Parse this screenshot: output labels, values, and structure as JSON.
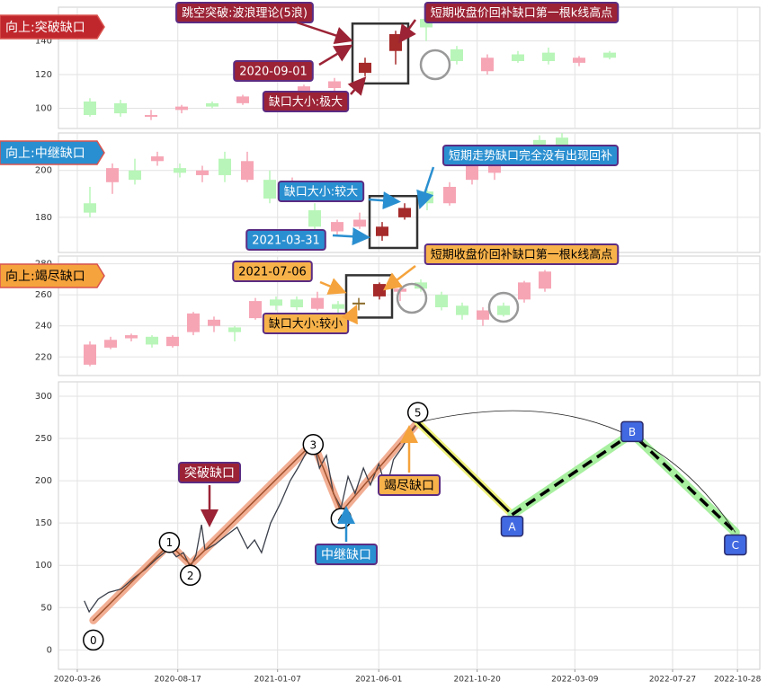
{
  "chart_data": [
    {
      "type": "candlestick",
      "tag": "向上:突破缺口",
      "tag_color": "#c0272d",
      "tag_text_color": "#ffffff",
      "annotation_color": "#9b2335",
      "annotation_text_color": "#ffffff",
      "ylim": [
        88,
        160
      ],
      "yticks": [
        100,
        120,
        140
      ],
      "open": [
        96,
        103,
        96,
        99,
        101,
        103,
        106,
        108,
        112,
        121,
        134,
        153,
        135,
        122,
        128,
        133,
        127,
        130
      ],
      "close": [
        104,
        97,
        96,
        101,
        103,
        107,
        108,
        113,
        116,
        127,
        144,
        148,
        128,
        130,
        132,
        128,
        130,
        133
      ],
      "high": [
        106,
        105,
        99,
        102,
        104,
        108,
        109,
        114,
        118,
        130,
        146,
        156,
        137,
        132,
        134,
        136,
        131,
        134
      ],
      "low": [
        95,
        95,
        93,
        97,
        100,
        102,
        105,
        107,
        110,
        119,
        126,
        140,
        126,
        120,
        127,
        126,
        125,
        129
      ],
      "colors": [
        "#b8f5b8",
        "#b8f5b8",
        "#f6a5b5",
        "#f6a5b5",
        "#b8f5b8",
        "#f6a5b5",
        "#f6a5b5",
        "#f6a5b5",
        "#f6a5b5",
        "#a52a2a",
        "#a52a2a",
        "#b8f5b8",
        "#b8f5b8",
        "#f6a5b5",
        "#b8f5b8",
        "#b8f5b8",
        "#f6a5b5",
        "#b8f5b8"
      ],
      "annotations": [
        {
          "text": "跳空突破:波浪理论(5浪)"
        },
        {
          "text": "短期收盘价回补缺口第一根k线高点"
        },
        {
          "text": "2020-09-01"
        },
        {
          "text": "缺口大小:极大"
        }
      ]
    },
    {
      "type": "candlestick",
      "tag": "向上:中继缺口",
      "tag_color": "#2a8fd0",
      "tag_text_color": "#ffffff",
      "annotation_color": "#2a8fd0",
      "annotation_text_color": "#ffffff",
      "ylim": [
        165,
        216
      ],
      "yticks": [
        180,
        200
      ],
      "open": [
        182,
        195,
        200,
        204,
        199,
        198,
        205,
        196,
        196,
        193,
        183,
        174,
        179,
        172,
        180,
        186,
        186,
        196,
        199,
        205,
        209,
        214
      ],
      "close": [
        186,
        201,
        196,
        206,
        201,
        200,
        198,
        204,
        188,
        195,
        176,
        178,
        176,
        176,
        184,
        191,
        193,
        203,
        202,
        207,
        213,
        206
      ],
      "high": [
        193,
        203,
        205,
        208,
        203,
        202,
        208,
        208,
        200,
        197,
        186,
        179,
        182,
        178,
        186,
        192,
        195,
        205,
        204,
        210,
        215,
        216
      ],
      "low": [
        180,
        190,
        194,
        202,
        197,
        195,
        195,
        195,
        186,
        190,
        174,
        172,
        175,
        170,
        179,
        183,
        185,
        194,
        196,
        203,
        207,
        204
      ],
      "colors": [
        "#b8f5b8",
        "#f6a5b5",
        "#b8f5b8",
        "#f6a5b5",
        "#b8f5b8",
        "#f6a5b5",
        "#b8f5b8",
        "#f6a5b5",
        "#b8f5b8",
        "#f6a5b5",
        "#b8f5b8",
        "#f6a5b5",
        "#f6a5b5",
        "#a52a2a",
        "#a52a2a",
        "#b8f5b8",
        "#f6a5b5",
        "#f6a5b5",
        "#f6a5b5",
        "#f6a5b5",
        "#b8f5b8",
        "#b8f5b8"
      ],
      "annotations": [
        {
          "text": "短期走势缺口完全没有出现回补"
        },
        {
          "text": "缺口大小:较大"
        },
        {
          "text": "2021-03-31"
        }
      ]
    },
    {
      "type": "candlestick",
      "tag": "向上:竭尽缺口",
      "tag_color": "#f5a33c",
      "tag_text_color": "#000000",
      "annotation_color": "#f7b24a",
      "annotation_text_color": "#000000",
      "ylim": [
        208,
        285
      ],
      "yticks": [
        220,
        240,
        260,
        280
      ],
      "open": [
        215,
        226,
        232,
        233,
        227,
        236,
        244,
        236,
        245,
        253,
        257,
        258,
        251,
        255,
        259,
        262,
        264,
        260,
        253,
        244,
        247,
        257,
        264
      ],
      "close": [
        228,
        231,
        234,
        228,
        233,
        248,
        240,
        239,
        256,
        257,
        252,
        251,
        254,
        255,
        267,
        264,
        268,
        252,
        247,
        250,
        253,
        268,
        275
      ],
      "high": [
        230,
        233,
        235,
        234,
        234,
        249,
        246,
        240,
        258,
        259,
        259,
        262,
        256,
        258,
        268,
        266,
        270,
        262,
        255,
        252,
        255,
        269,
        276
      ],
      "low": [
        214,
        225,
        230,
        226,
        226,
        234,
        236,
        230,
        244,
        250,
        250,
        250,
        248,
        250,
        257,
        256,
        262,
        250,
        244,
        240,
        246,
        255,
        262
      ],
      "colors": [
        "#f6a5b5",
        "#f6a5b5",
        "#f6a5b5",
        "#b8f5b8",
        "#f6a5b5",
        "#f6a5b5",
        "#f6a5b5",
        "#b8f5b8",
        "#f6a5b5",
        "#b8f5b8",
        "#b8f5b8",
        "#f6a5b5",
        "#b8f5b8",
        "#8b6b2a",
        "#a52a2a",
        "#f6a5b5",
        "#b8f5b8",
        "#b8f5b8",
        "#b8f5b8",
        "#f6a5b5",
        "#b8f5b8",
        "#f6a5b5",
        "#f6a5b5"
      ],
      "annotations": [
        {
          "text": "2021-07-06"
        },
        {
          "text": "短期收盘价回补缺口第一根k线高点"
        },
        {
          "text": "缺口大小:较小"
        }
      ]
    },
    {
      "type": "line",
      "xlim": [
        "2020-02-28",
        "2022-11-29"
      ],
      "ylim": [
        -23,
        317
      ],
      "yticks": [
        0,
        50,
        100,
        150,
        200,
        250,
        300
      ],
      "xticks": [
        "2020-03-26",
        "2020-08-17",
        "2021-01-07",
        "2021-06-01",
        "2021-10-20",
        "2022-03-09",
        "2022-07-27",
        "2022-10-28"
      ],
      "series": [
        {
          "color": "#3a3f4a",
          "x": [
            "2020-04-05",
            "2020-04-12",
            "2020-04-25",
            "2020-05-10",
            "2020-05-28",
            "2020-06-15",
            "2020-07-01",
            "2020-07-18",
            "2020-08-05",
            "2020-08-15",
            "2020-08-25",
            "2020-09-04",
            "2020-09-12",
            "2020-09-20",
            "2020-09-25",
            "2020-10-10",
            "2020-10-25",
            "2020-11-10",
            "2020-11-25",
            "2020-12-05",
            "2020-12-15",
            "2020-12-28",
            "2021-01-12",
            "2021-01-25",
            "2021-02-05",
            "2021-02-15",
            "2021-02-27",
            "2021-03-08",
            "2021-03-18",
            "2021-03-28",
            "2021-04-08",
            "2021-04-18",
            "2021-04-28",
            "2021-05-10",
            "2021-05-20",
            "2021-06-01",
            "2021-06-12",
            "2021-06-22",
            "2021-07-05",
            "2021-07-15",
            "2021-07-27"
          ],
          "values": [
            58,
            45,
            60,
            68,
            72,
            85,
            95,
            108,
            120,
            110,
            115,
            98,
            112,
            148,
            118,
            125,
            135,
            145,
            120,
            130,
            115,
            150,
            175,
            200,
            215,
            230,
            248,
            215,
            230,
            185,
            168,
            205,
            185,
            215,
            195,
            220,
            190,
            225,
            240,
            255,
            268
          ]
        }
      ],
      "waves": {
        "labels": [
          "0",
          "1",
          "2",
          "3",
          "4",
          "5",
          "A",
          "B",
          "C"
        ],
        "x": [
          "2020-04-18",
          "2020-08-05",
          "2020-09-04",
          "2021-02-27",
          "2021-04-08",
          "2021-07-27",
          "2021-12-09",
          "2022-05-30",
          "2022-10-25"
        ],
        "values": [
          35,
          125,
          101,
          245,
          163,
          269,
          160,
          256,
          139
        ]
      },
      "annotations": [
        {
          "text": "突破缺口"
        },
        {
          "text": "中继缺口"
        },
        {
          "text": "竭尽缺口"
        }
      ]
    }
  ]
}
